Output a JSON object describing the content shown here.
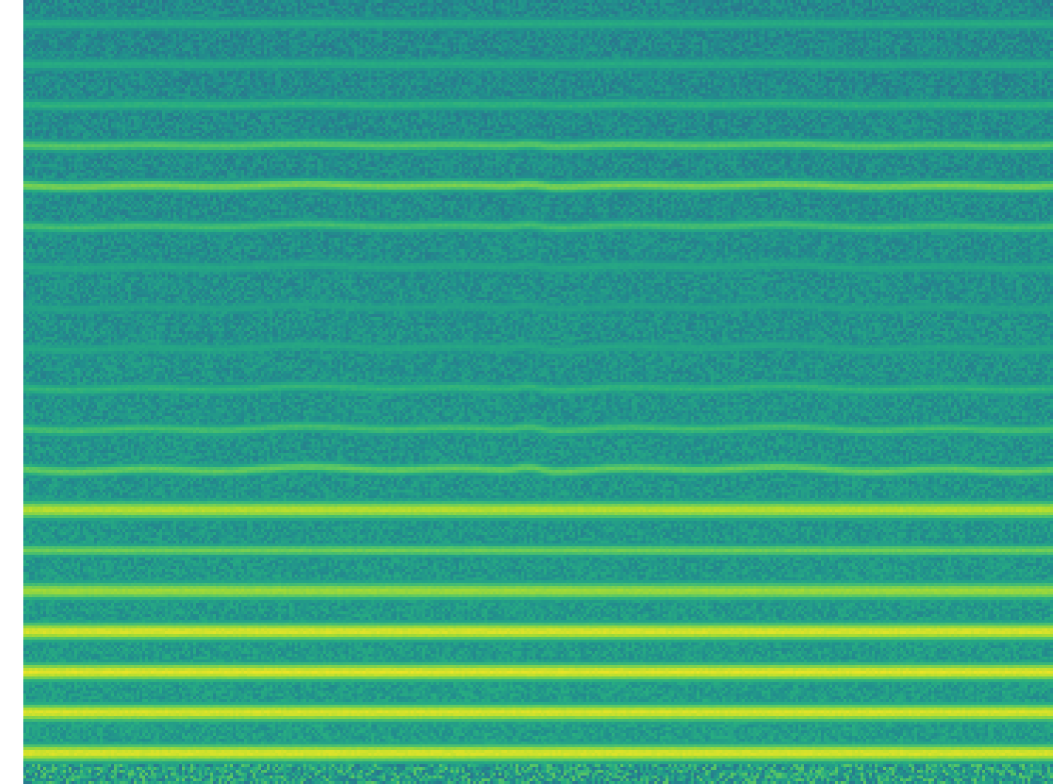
{
  "chart_data": {
    "type": "heatmap",
    "title": "",
    "xlabel": "",
    "ylabel": "",
    "colormap": "viridis",
    "y_orientation": "top-down",
    "harmonic_bands": [
      {
        "index": 0,
        "intensity": 0.62
      },
      {
        "index": 1,
        "intensity": 0.62
      },
      {
        "index": 2,
        "intensity": 0.65
      },
      {
        "index": 3,
        "intensity": 0.74
      },
      {
        "index": 4,
        "intensity": 0.8
      },
      {
        "index": 5,
        "intensity": 0.7
      },
      {
        "index": 6,
        "intensity": 0.6
      },
      {
        "index": 7,
        "intensity": 0.58
      },
      {
        "index": 8,
        "intensity": 0.6
      },
      {
        "index": 9,
        "intensity": 0.66
      },
      {
        "index": 10,
        "intensity": 0.7
      },
      {
        "index": 11,
        "intensity": 0.76
      },
      {
        "index": 12,
        "intensity": 0.9
      },
      {
        "index": 13,
        "intensity": 0.78
      },
      {
        "index": 14,
        "intensity": 0.86
      },
      {
        "index": 15,
        "intensity": 0.95
      },
      {
        "index": 16,
        "intensity": 0.96
      },
      {
        "index": 17,
        "intensity": 0.95
      },
      {
        "index": 18,
        "intensity": 0.95
      }
    ],
    "background_intensity": [
      0.4,
      0.62
    ],
    "pitch_dip_location": 0.49,
    "grid": false,
    "legend": "none"
  }
}
